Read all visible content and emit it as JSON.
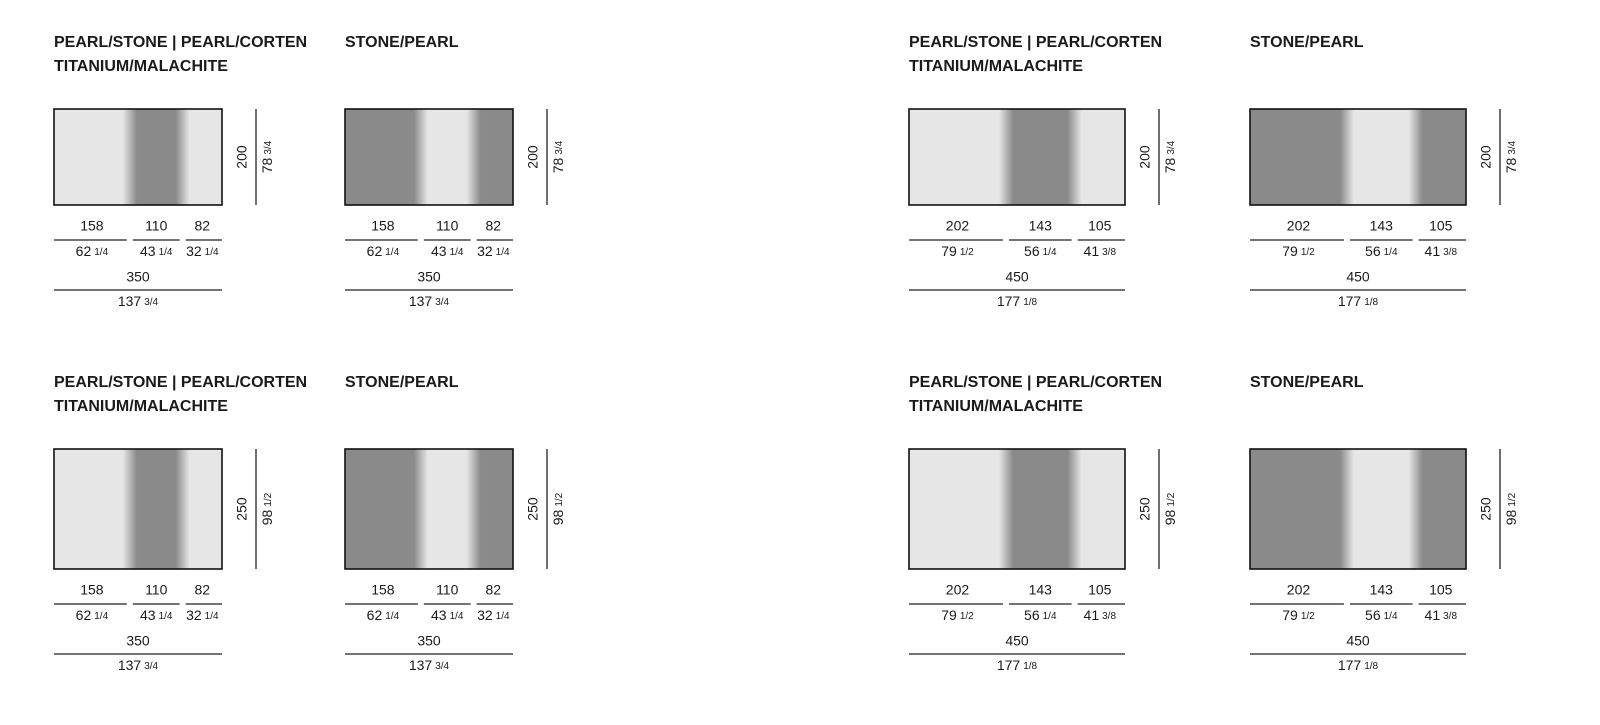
{
  "panels": [
    {
      "title": [
        "PEARL/STONE | PEARL/CORTEN",
        "TITANIUM/MALACHITE"
      ],
      "height_cm": "200",
      "height_in": "78",
      "height_frac": "3/4",
      "segments": [
        {
          "cm": "158",
          "in": "62",
          "frac": "1/4"
        },
        {
          "cm": "110",
          "in": "43",
          "frac": "1/4"
        },
        {
          "cm": "82",
          "in": "32",
          "frac": "1/4"
        }
      ],
      "total_cm": "350",
      "total_in": "137",
      "total_frac": "3/4"
    },
    {
      "title": [
        "STONE/PEARL"
      ],
      "height_cm": "200",
      "height_in": "78",
      "height_frac": "3/4",
      "segments": [
        {
          "cm": "158",
          "in": "62",
          "frac": "1/4"
        },
        {
          "cm": "110",
          "in": "43",
          "frac": "1/4"
        },
        {
          "cm": "82",
          "in": "32",
          "frac": "1/4"
        }
      ],
      "total_cm": "350",
      "total_in": "137",
      "total_frac": "3/4"
    },
    {
      "title": [
        "PEARL/STONE | PEARL/CORTEN",
        "TITANIUM/MALACHITE"
      ],
      "height_cm": "200",
      "height_in": "78",
      "height_frac": "3/4",
      "segments": [
        {
          "cm": "202",
          "in": "79",
          "frac": "1/2"
        },
        {
          "cm": "143",
          "in": "56",
          "frac": "1/4"
        },
        {
          "cm": "105",
          "in": "41",
          "frac": "3/8"
        }
      ],
      "total_cm": "450",
      "total_in": "177",
      "total_frac": "1/8"
    },
    {
      "title": [
        "STONE/PEARL"
      ],
      "height_cm": "200",
      "height_in": "78",
      "height_frac": "3/4",
      "segments": [
        {
          "cm": "202",
          "in": "79",
          "frac": "1/2"
        },
        {
          "cm": "143",
          "in": "56",
          "frac": "1/4"
        },
        {
          "cm": "105",
          "in": "41",
          "frac": "3/8"
        }
      ],
      "total_cm": "450",
      "total_in": "177",
      "total_frac": "1/8"
    },
    {
      "title": [
        "PEARL/STONE | PEARL/CORTEN",
        "TITANIUM/MALACHITE"
      ],
      "height_cm": "250",
      "height_in": "98",
      "height_frac": "1/2",
      "segments": [
        {
          "cm": "158",
          "in": "62",
          "frac": "1/4"
        },
        {
          "cm": "110",
          "in": "43",
          "frac": "1/4"
        },
        {
          "cm": "82",
          "in": "32",
          "frac": "1/4"
        }
      ],
      "total_cm": "350",
      "total_in": "137",
      "total_frac": "3/4"
    },
    {
      "title": [
        "STONE/PEARL"
      ],
      "height_cm": "250",
      "height_in": "98",
      "height_frac": "1/2",
      "segments": [
        {
          "cm": "158",
          "in": "62",
          "frac": "1/4"
        },
        {
          "cm": "110",
          "in": "43",
          "frac": "1/4"
        },
        {
          "cm": "82",
          "in": "32",
          "frac": "1/4"
        }
      ],
      "total_cm": "350",
      "total_in": "137",
      "total_frac": "3/4"
    },
    {
      "title": [
        "PEARL/STONE | PEARL/CORTEN",
        "TITANIUM/MALACHITE"
      ],
      "height_cm": "250",
      "height_in": "98",
      "height_frac": "1/2",
      "segments": [
        {
          "cm": "202",
          "in": "79",
          "frac": "1/2"
        },
        {
          "cm": "143",
          "in": "56",
          "frac": "1/4"
        },
        {
          "cm": "105",
          "in": "41",
          "frac": "3/8"
        }
      ],
      "total_cm": "450",
      "total_in": "177",
      "total_frac": "1/8"
    },
    {
      "title": [
        "STONE/PEARL"
      ],
      "height_cm": "250",
      "height_in": "98",
      "height_frac": "1/2",
      "segments": [
        {
          "cm": "202",
          "in": "79",
          "frac": "1/2"
        },
        {
          "cm": "143",
          "in": "56",
          "frac": "1/4"
        },
        {
          "cm": "105",
          "in": "41",
          "frac": "3/8"
        }
      ],
      "total_cm": "450",
      "total_in": "177",
      "total_frac": "1/8"
    }
  ]
}
